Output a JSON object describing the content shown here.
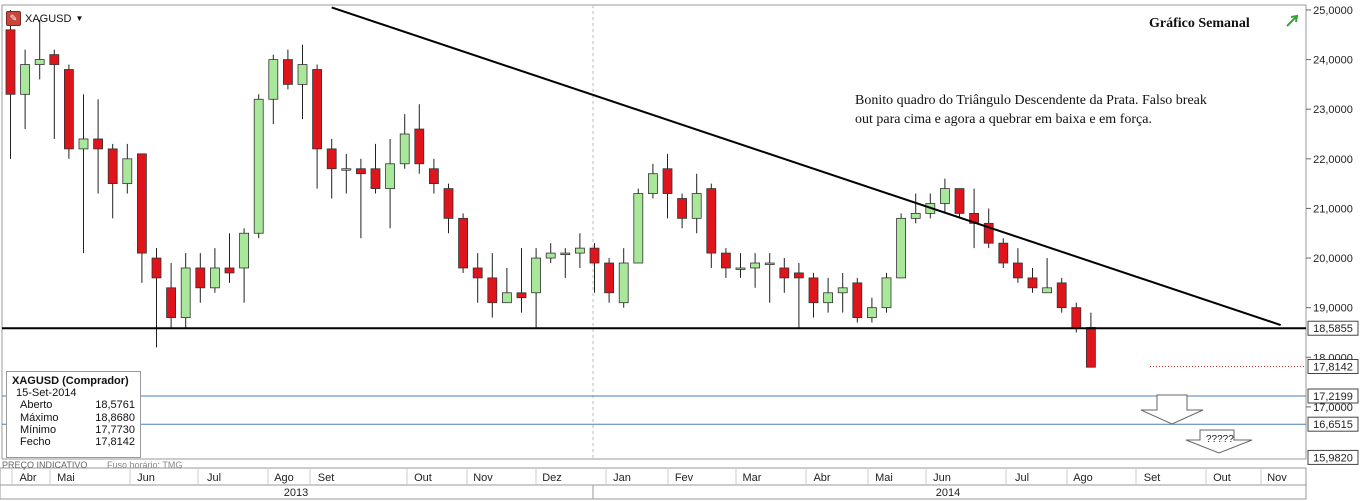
{
  "symbol": "XAGUSD",
  "symbol_dropdown_icon": "triangle-down-icon",
  "title": "Gráfico Semanal",
  "trend_icon": "green-arrow-icon",
  "annotation": {
    "line1": "Bonito quadro do Triângulo Descendente da Prata. Falso break",
    "line2": "out para cima e agora a quebrar em baixa e em força."
  },
  "question_marks": "?????",
  "footer": {
    "indicative": "PREÇO INDICATIVO",
    "timezone": "Fuso horário: TMG"
  },
  "info": {
    "header": "XAGUSD (Comprador)",
    "date": "15-Set-2014",
    "rows": [
      {
        "label": "Aberto",
        "value": "18,5761"
      },
      {
        "label": "Máximo",
        "value": "18,8680"
      },
      {
        "label": "Mínimo",
        "value": "17,7730"
      },
      {
        "label": "Fecho",
        "value": "17,8142"
      }
    ]
  },
  "colors": {
    "up": "#a9e89b",
    "down": "#e0141b",
    "line": "#000000",
    "grid": "#c8c8c8",
    "hline_blue": "#4a7fb5"
  },
  "chart_data": {
    "type": "candlestick",
    "title": "Gráfico Semanal",
    "ylim": [
      15.95,
      25.1
    ],
    "y_ticks": [
      "25,0000",
      "24,0000",
      "23,0000",
      "22,0000",
      "21,0000",
      "20,0000",
      "19,0000",
      "18,0000",
      "17,0000"
    ],
    "x_months": [
      "Abr",
      "Mai",
      "Jun",
      "Jul",
      "Ago",
      "Set",
      "Out",
      "Nov",
      "Dez",
      "Jan",
      "Fev",
      "Mar",
      "Abr",
      "Mai",
      "Jun",
      "Jul",
      "Ago",
      "Set",
      "Out",
      "Nov"
    ],
    "years": [
      "2013",
      "2014"
    ],
    "price_tags": [
      {
        "label": "18,5855",
        "value": 18.5855,
        "style": "black"
      },
      {
        "label": "17,8142",
        "value": 17.8142,
        "style": "dotted-red"
      },
      {
        "label": "17,2199",
        "value": 17.2199,
        "style": "blue"
      },
      {
        "label": "16,6515",
        "value": 16.6515,
        "style": "blue"
      },
      {
        "label": "15,9820",
        "value": 15.982,
        "style": "none"
      }
    ],
    "trendlines": [
      {
        "name": "descending",
        "from": [
          22,
          25.05
        ],
        "to": [
          87,
          18.65
        ]
      },
      {
        "name": "support",
        "from": [
          0,
          18.5855
        ],
        "to": [
          90,
          18.5855
        ]
      }
    ],
    "candles": [
      [
        24.6,
        23.3,
        25.0,
        22.0
      ],
      [
        23.3,
        23.9,
        24.2,
        22.6
      ],
      [
        23.9,
        24.0,
        24.8,
        23.6
      ],
      [
        24.1,
        23.9,
        24.2,
        22.4
      ],
      [
        23.8,
        22.2,
        23.9,
        22.0
      ],
      [
        22.2,
        22.4,
        23.3,
        20.1
      ],
      [
        22.4,
        22.2,
        23.2,
        21.3
      ],
      [
        22.2,
        21.5,
        22.3,
        20.8
      ],
      [
        21.5,
        22.0,
        22.3,
        21.3
      ],
      [
        22.1,
        20.1,
        22.1,
        19.5
      ],
      [
        20.0,
        19.6,
        20.2,
        18.2
      ],
      [
        19.4,
        18.8,
        19.9,
        18.6
      ],
      [
        18.8,
        19.8,
        20.1,
        18.6
      ],
      [
        19.8,
        19.4,
        20.1,
        19.1
      ],
      [
        19.4,
        19.8,
        20.2,
        19.3
      ],
      [
        19.8,
        19.7,
        20.5,
        19.5
      ],
      [
        19.8,
        20.5,
        20.6,
        19.1
      ],
      [
        20.5,
        23.2,
        23.3,
        20.4
      ],
      [
        23.2,
        24.0,
        24.1,
        22.7
      ],
      [
        24.0,
        23.5,
        24.2,
        23.4
      ],
      [
        23.5,
        23.9,
        24.3,
        22.8
      ],
      [
        23.8,
        22.2,
        23.9,
        21.4
      ],
      [
        22.2,
        21.8,
        22.4,
        21.2
      ],
      [
        21.8,
        21.8,
        22.1,
        21.3
      ],
      [
        21.8,
        21.7,
        22.0,
        20.4
      ],
      [
        21.8,
        21.4,
        22.3,
        21.3
      ],
      [
        21.4,
        21.9,
        22.4,
        20.6
      ],
      [
        21.9,
        22.5,
        22.9,
        21.8
      ],
      [
        22.6,
        21.9,
        23.1,
        21.7
      ],
      [
        21.8,
        21.5,
        22.0,
        21.3
      ],
      [
        21.4,
        20.8,
        21.5,
        20.5
      ],
      [
        20.8,
        19.8,
        20.9,
        19.7
      ],
      [
        19.8,
        19.6,
        20.1,
        19.1
      ],
      [
        19.6,
        19.1,
        20.1,
        18.8
      ],
      [
        19.1,
        19.3,
        19.8,
        19.1
      ],
      [
        19.3,
        19.2,
        20.2,
        18.9
      ],
      [
        19.3,
        20.0,
        20.2,
        18.6
      ],
      [
        20.0,
        20.1,
        20.3,
        19.9
      ],
      [
        20.1,
        20.1,
        20.2,
        19.6
      ],
      [
        20.1,
        20.2,
        20.5,
        19.8
      ],
      [
        20.2,
        19.9,
        20.3,
        19.3
      ],
      [
        19.9,
        19.3,
        20.0,
        19.1
      ],
      [
        19.1,
        19.9,
        20.2,
        19.0
      ],
      [
        19.9,
        21.3,
        21.4,
        19.9
      ],
      [
        21.3,
        21.7,
        21.9,
        21.2
      ],
      [
        21.8,
        21.3,
        22.1,
        20.8
      ],
      [
        21.2,
        20.8,
        21.3,
        20.6
      ],
      [
        20.8,
        21.3,
        21.7,
        20.5
      ],
      [
        21.4,
        20.1,
        21.5,
        19.8
      ],
      [
        20.1,
        19.8,
        20.2,
        19.6
      ],
      [
        19.8,
        19.8,
        20.1,
        19.6
      ],
      [
        19.8,
        19.9,
        20.1,
        19.4
      ],
      [
        19.9,
        19.9,
        20.1,
        19.1
      ],
      [
        19.8,
        19.6,
        20.0,
        19.3
      ],
      [
        19.7,
        19.6,
        19.9,
        18.6
      ],
      [
        19.6,
        19.1,
        19.7,
        18.8
      ],
      [
        19.1,
        19.3,
        19.6,
        18.9
      ],
      [
        19.3,
        19.4,
        19.7,
        18.9
      ],
      [
        19.5,
        18.8,
        19.6,
        18.7
      ],
      [
        18.8,
        19.0,
        19.2,
        18.7
      ],
      [
        19.0,
        19.6,
        19.7,
        18.9
      ],
      [
        19.6,
        20.8,
        20.9,
        19.6
      ],
      [
        20.8,
        20.9,
        21.3,
        20.7
      ],
      [
        20.9,
        21.1,
        21.3,
        20.8
      ],
      [
        21.1,
        21.4,
        21.6,
        20.9
      ],
      [
        21.4,
        20.9,
        21.4,
        20.8
      ],
      [
        20.9,
        20.7,
        21.4,
        20.2
      ],
      [
        20.7,
        20.3,
        21.0,
        20.2
      ],
      [
        20.3,
        19.9,
        20.4,
        19.8
      ],
      [
        19.9,
        19.6,
        20.2,
        19.5
      ],
      [
        19.6,
        19.4,
        19.8,
        19.3
      ],
      [
        19.3,
        19.4,
        20.0,
        19.3
      ],
      [
        19.5,
        19.0,
        19.6,
        18.9
      ],
      [
        19.0,
        18.6,
        19.1,
        18.5
      ],
      [
        18.6,
        17.8,
        18.9,
        17.8
      ]
    ]
  }
}
